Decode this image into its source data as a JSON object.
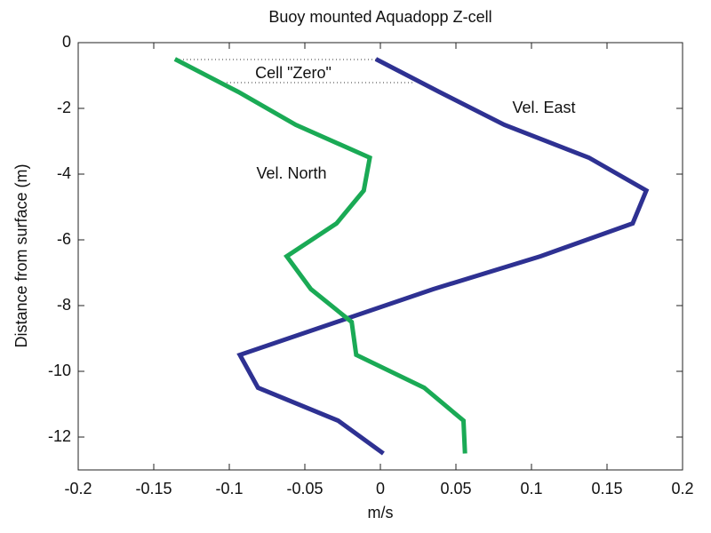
{
  "chart_data": {
    "type": "line",
    "title": "Buoy mounted Aquadopp Z-cell",
    "x_label": "m/s",
    "y_label": "Distance from surface (m)",
    "annotations": [
      "Cell \"Zero\"",
      "Vel. East",
      "Vel. North"
    ],
    "xlim": [
      -0.2,
      0.2
    ],
    "xticks": [
      -0.2,
      -0.15,
      -0.1,
      -0.05,
      0,
      0.05,
      0.1,
      0.15,
      0.2
    ],
    "ylim": [
      -13,
      0
    ],
    "yticks": [
      -12,
      -10,
      -8,
      -6,
      -4,
      -2,
      0
    ],
    "series": [
      {
        "color": "#2e3192",
        "x": [
          -0.003,
          0.039,
          0.082,
          0.138,
          0.176,
          0.167,
          0.106,
          0.035,
          -0.029,
          -0.093,
          -0.081,
          -0.028,
          0.002
        ],
        "y": [
          -0.5,
          -1.5,
          -2.5,
          -3.5,
          -4.5,
          -5.5,
          -6.5,
          -7.5,
          -8.5,
          -9.5,
          -10.5,
          -11.5,
          -12.5
        ]
      },
      {
        "color": "#1aaa55",
        "x": [
          -0.136,
          -0.094,
          -0.056,
          -0.007,
          -0.011,
          -0.029,
          -0.062,
          -0.046,
          -0.019,
          -0.016,
          0.029,
          0.055,
          0.056
        ],
        "y": [
          -0.5,
          -1.5,
          -2.5,
          -3.5,
          -4.5,
          -5.5,
          -6.5,
          -7.5,
          -8.5,
          -9.5,
          -10.5,
          -11.5,
          -12.5
        ]
      }
    ]
  }
}
